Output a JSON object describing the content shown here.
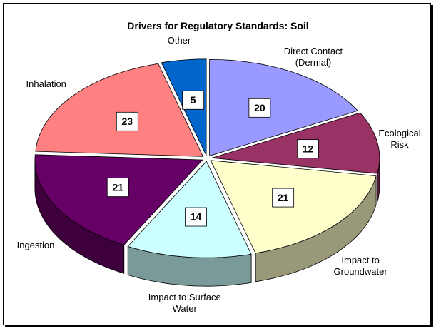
{
  "chart_data": {
    "type": "pie",
    "title": "Drivers for Regulatory Standards:  Soil",
    "categories": [
      "Direct Contact (Dermal)",
      "Ecological Risk",
      "Impact to Groundwater",
      "Impact to Surface Water",
      "Ingestion",
      "Inhalation",
      "Other"
    ],
    "values": [
      20,
      12,
      21,
      14,
      21,
      23,
      5
    ],
    "colors": [
      "#9999ff",
      "#993366",
      "#ffffcc",
      "#ccffff",
      "#660066",
      "#ff8080",
      "#0066cc"
    ]
  }
}
